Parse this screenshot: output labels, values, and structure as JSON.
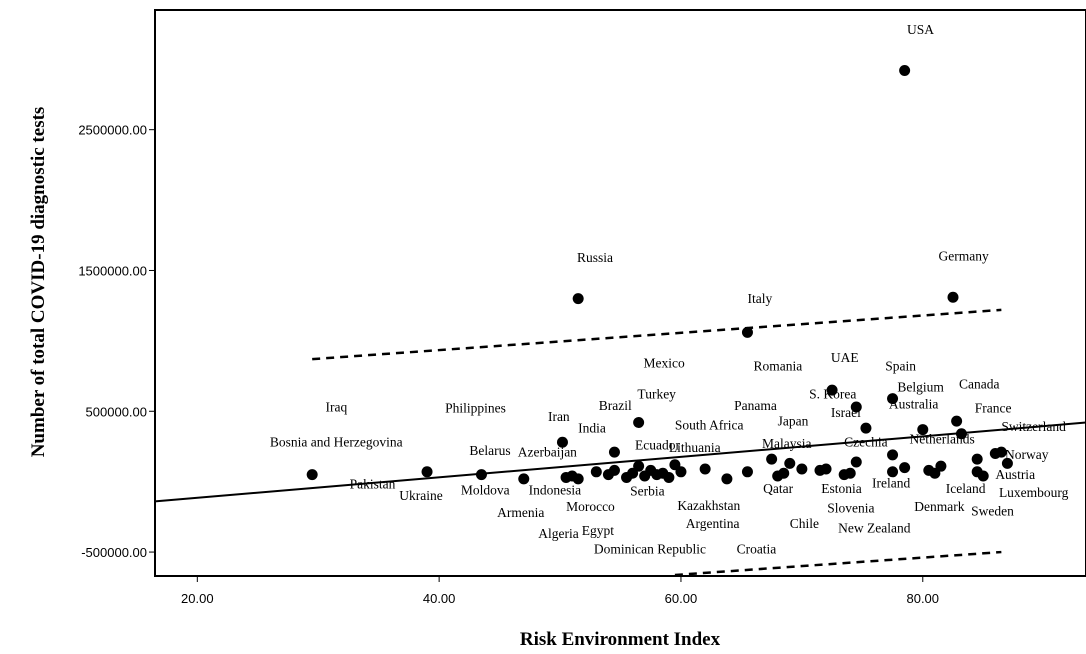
{
  "chart_data": {
    "type": "scatter",
    "xlabel": "Risk Environment Index",
    "ylabel": "Number of total COVID-19 diagnostic tests",
    "xlim": [
      16.5,
      93.5
    ],
    "ylim": [
      -670000,
      3350000
    ],
    "x_ticks": [
      "20.00",
      "40.00",
      "60.00",
      "80.00"
    ],
    "x_tick_values": [
      20,
      40,
      60,
      80
    ],
    "y_ticks": [
      "-500000.00",
      "500000.00",
      "1500000.00",
      "2500000.00"
    ],
    "y_tick_values": [
      -500000,
      500000,
      1500000,
      2500000
    ],
    "grid": false,
    "fit_line": {
      "x0": 16.5,
      "y0": -140000,
      "x1": 93.5,
      "y1": 420000
    },
    "upper_band": [
      [
        29.5,
        870000
      ],
      [
        86.5,
        1220000
      ]
    ],
    "lower_band": [
      [
        59.5,
        -700000
      ],
      [
        86.5,
        -500000
      ]
    ],
    "labeled_points": [
      {
        "name": "USA",
        "x": 78.5,
        "y": 2920000
      },
      {
        "name": "Russia",
        "x": 51.5,
        "y": 1300000
      },
      {
        "name": "Germany",
        "x": 82.5,
        "y": 1310000
      },
      {
        "name": "Italy",
        "x": 65.5,
        "y": 1060000
      },
      {
        "name": "UAE",
        "x": 72.5,
        "y": 650000
      },
      {
        "name": "Spain",
        "x": 77.5,
        "y": 590000
      },
      {
        "name": "S. Korea",
        "x": 74.5,
        "y": 530000
      },
      {
        "name": "Canada",
        "x": 82.8,
        "y": 430000
      },
      {
        "name": "Turkey",
        "x": 56.5,
        "y": 420000
      },
      {
        "name": "Israel",
        "x": 75.3,
        "y": 380000
      },
      {
        "name": "Australia",
        "x": 80.0,
        "y": 370000
      },
      {
        "name": "France",
        "x": 83.2,
        "y": 340000
      },
      {
        "name": "Iran",
        "x": 50.2,
        "y": 280000
      },
      {
        "name": "Brazil",
        "x": 54.5,
        "y": 210000
      },
      {
        "name": "Switzerland",
        "x": 86.0,
        "y": 200000
      },
      {
        "name": "Netherlands",
        "x": 77.5,
        "y": 190000
      },
      {
        "name": "Norway",
        "x": 87.0,
        "y": 130000
      },
      {
        "name": "Bosnia and Herzegovina",
        "x": 29.5,
        "y": 50000
      },
      {
        "name": "Ukraine",
        "x": 39.0,
        "y": 70000
      },
      {
        "name": "Belarus",
        "x": 43.5,
        "y": 50000
      },
      {
        "name": "Azerbaijan",
        "x": 47.0,
        "y": 20000
      }
    ],
    "other_points": [
      [
        50.5,
        30000
      ],
      [
        51.0,
        40000
      ],
      [
        51.5,
        20000
      ],
      [
        53.0,
        70000
      ],
      [
        54.0,
        50000
      ],
      [
        54.5,
        80000
      ],
      [
        55.5,
        30000
      ],
      [
        56.0,
        60000
      ],
      [
        56.5,
        110000
      ],
      [
        57.0,
        40000
      ],
      [
        57.5,
        80000
      ],
      [
        58.0,
        50000
      ],
      [
        58.5,
        60000
      ],
      [
        59.0,
        30000
      ],
      [
        59.5,
        120000
      ],
      [
        60.0,
        70000
      ],
      [
        62.0,
        90000
      ],
      [
        63.8,
        20000
      ],
      [
        65.5,
        70000
      ],
      [
        67.5,
        160000
      ],
      [
        68.0,
        40000
      ],
      [
        68.5,
        60000
      ],
      [
        69.0,
        130000
      ],
      [
        70.0,
        90000
      ],
      [
        71.5,
        80000
      ],
      [
        72.0,
        90000
      ],
      [
        73.5,
        50000
      ],
      [
        74.0,
        60000
      ],
      [
        74.5,
        140000
      ],
      [
        77.5,
        70000
      ],
      [
        78.5,
        100000
      ],
      [
        80.5,
        80000
      ],
      [
        81.0,
        60000
      ],
      [
        81.5,
        110000
      ],
      [
        84.5,
        160000
      ],
      [
        84.5,
        70000
      ],
      [
        85.0,
        40000
      ],
      [
        86.5,
        210000
      ]
    ],
    "annotations": [
      {
        "text": "USA",
        "x": 78.7,
        "y": 3180000
      },
      {
        "text": "Russia",
        "x": 51.4,
        "y": 1560000
      },
      {
        "text": "Germany",
        "x": 81.3,
        "y": 1570000
      },
      {
        "text": "Italy",
        "x": 65.5,
        "y": 1270000
      },
      {
        "text": "Mexico",
        "x": 56.9,
        "y": 810000
      },
      {
        "text": "Romania",
        "x": 66.0,
        "y": 790000
      },
      {
        "text": "UAE",
        "x": 72.4,
        "y": 850000
      },
      {
        "text": "Spain",
        "x": 76.9,
        "y": 790000
      },
      {
        "text": "Belgium",
        "x": 77.9,
        "y": 640000
      },
      {
        "text": "Canada",
        "x": 83.0,
        "y": 660000
      },
      {
        "text": "S. Korea",
        "x": 70.6,
        "y": 590000
      },
      {
        "text": "Turkey",
        "x": 56.4,
        "y": 590000
      },
      {
        "text": "Panama",
        "x": 64.4,
        "y": 510000
      },
      {
        "text": "Australia",
        "x": 77.2,
        "y": 520000
      },
      {
        "text": "Israel",
        "x": 72.4,
        "y": 460000
      },
      {
        "text": "France",
        "x": 84.3,
        "y": 490000
      },
      {
        "text": "Iraq",
        "x": 30.6,
        "y": 500000
      },
      {
        "text": "Philippines",
        "x": 40.5,
        "y": 490000
      },
      {
        "text": "Iran",
        "x": 49.0,
        "y": 430000
      },
      {
        "text": "Brazil",
        "x": 53.2,
        "y": 510000
      },
      {
        "text": "India",
        "x": 51.5,
        "y": 350000
      },
      {
        "text": "South Africa",
        "x": 59.5,
        "y": 370000
      },
      {
        "text": "Japan",
        "x": 68.0,
        "y": 400000
      },
      {
        "text": "Switzerland",
        "x": 86.5,
        "y": 360000
      },
      {
        "text": "Bosnia and Herzegovina",
        "x": 26.0,
        "y": 250000
      },
      {
        "text": "Belarus",
        "x": 42.5,
        "y": 190000
      },
      {
        "text": "Azerbaijan",
        "x": 46.5,
        "y": 180000
      },
      {
        "text": "Ecuador",
        "x": 56.2,
        "y": 230000
      },
      {
        "text": "Lithuania",
        "x": 59.0,
        "y": 210000
      },
      {
        "text": "Malaysia",
        "x": 66.7,
        "y": 240000
      },
      {
        "text": "Czechia",
        "x": 73.5,
        "y": 250000
      },
      {
        "text": "Netherlands",
        "x": 78.9,
        "y": 270000
      },
      {
        "text": "Norway",
        "x": 86.8,
        "y": 160000
      },
      {
        "text": "Pakistan",
        "x": 32.6,
        "y": -50000
      },
      {
        "text": "Ukraine",
        "x": 36.7,
        "y": -130000
      },
      {
        "text": "Moldova",
        "x": 41.8,
        "y": -90000
      },
      {
        "text": "Indonesia",
        "x": 47.4,
        "y": -90000
      },
      {
        "text": "Serbia",
        "x": 55.8,
        "y": -100000
      },
      {
        "text": "Qatar",
        "x": 66.8,
        "y": -80000
      },
      {
        "text": "Estonia",
        "x": 71.6,
        "y": -80000
      },
      {
        "text": "Ireland",
        "x": 75.8,
        "y": -40000
      },
      {
        "text": "Iceland",
        "x": 81.9,
        "y": -80000
      },
      {
        "text": "Austria",
        "x": 86.0,
        "y": 20000
      },
      {
        "text": "Luxembourg",
        "x": 86.3,
        "y": -110000
      },
      {
        "text": "Kazakhstan",
        "x": 59.7,
        "y": -200000
      },
      {
        "text": "Slovenia",
        "x": 72.1,
        "y": -220000
      },
      {
        "text": "Denmark",
        "x": 79.3,
        "y": -210000
      },
      {
        "text": "Sweden",
        "x": 84.0,
        "y": -240000
      },
      {
        "text": "Armenia",
        "x": 44.8,
        "y": -250000
      },
      {
        "text": "Morocco",
        "x": 50.5,
        "y": -210000
      },
      {
        "text": "Argentina",
        "x": 60.4,
        "y": -330000
      },
      {
        "text": "Chile",
        "x": 69.0,
        "y": -330000
      },
      {
        "text": "New Zealand",
        "x": 73.0,
        "y": -360000
      },
      {
        "text": "Algeria",
        "x": 48.2,
        "y": -400000
      },
      {
        "text": "Egypt",
        "x": 51.8,
        "y": -380000
      },
      {
        "text": "Dominican Republic",
        "x": 52.8,
        "y": -510000
      },
      {
        "text": "Croatia",
        "x": 64.6,
        "y": -510000
      }
    ]
  }
}
